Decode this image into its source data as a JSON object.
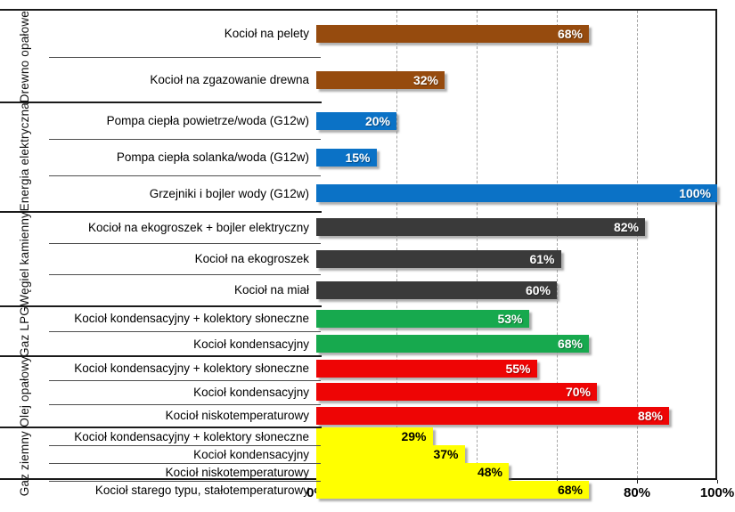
{
  "chart_data": {
    "type": "bar",
    "orientation": "horizontal",
    "title": "",
    "xlabel": "",
    "ylabel": "",
    "value_unit": "%",
    "xlim": [
      0,
      100
    ],
    "x_ticks": [
      "0%",
      "20%",
      "40%",
      "60%",
      "80%",
      "100%"
    ],
    "x_tick_values": [
      0,
      20,
      40,
      60,
      80,
      100
    ],
    "grid": "vertical dashed gridlines at 20/40/60/80",
    "legend": "none",
    "colors": {
      "grid_line": "#a6a6a6",
      "border": "#1a1a1a",
      "row_separator": "#4d4d4d",
      "default_value_label": "#ffffff"
    },
    "groups": [
      {
        "label": "Drewno opałowe",
        "color": "#964b0e",
        "value_label_color": "#ffffff",
        "items": [
          {
            "label": "Kocioł na pelety",
            "value": 68,
            "value_label": "68%"
          },
          {
            "label": "Kocioł na zgazowanie drewna",
            "value": 32,
            "value_label": "32%"
          }
        ]
      },
      {
        "label": "Energia elektryczna",
        "color": "#0b72c6",
        "value_label_color": "#ffffff",
        "items": [
          {
            "label": "Pompa ciepła powietrze/woda (G12w)",
            "value": 20,
            "value_label": "20%"
          },
          {
            "label": "Pompa ciepła solanka/woda (G12w)",
            "value": 15,
            "value_label": "15%"
          },
          {
            "label": "Grzejniki i bojler wody (G12w)",
            "value": 100,
            "value_label": "100%"
          }
        ]
      },
      {
        "label": "Węgiel kamienny",
        "color": "#3a3a3a",
        "value_label_color": "#ffffff",
        "items": [
          {
            "label": "Kocioł na ekogroszek + bojler elektryczny",
            "value": 82,
            "value_label": "82%"
          },
          {
            "label": "Kocioł na ekogroszek",
            "value": 61,
            "value_label": "61%"
          },
          {
            "label": "Kocioł na miał",
            "value": 60,
            "value_label": "60%"
          }
        ]
      },
      {
        "label": "Gaz LPG",
        "color": "#17a94e",
        "value_label_color": "#ffffff",
        "items": [
          {
            "label": "Kocioł kondensacyjny + kolektory słoneczne",
            "value": 53,
            "value_label": "53%"
          },
          {
            "label": "Kocioł kondensacyjny",
            "value": 68,
            "value_label": "68%"
          }
        ]
      },
      {
        "label": "Olej opałowy",
        "color": "#ee0505",
        "value_label_color": "#ffffff",
        "items": [
          {
            "label": "Kocioł kondensacyjny + kolektory słoneczne",
            "value": 55,
            "value_label": "55%"
          },
          {
            "label": "Kocioł kondensacyjny",
            "value": 70,
            "value_label": "70%"
          },
          {
            "label": "Kocioł niskotemperaturowy",
            "value": 88,
            "value_label": "88%"
          }
        ]
      },
      {
        "label": "Gaz ziemny",
        "color": "#ffff00",
        "value_label_color": "#000000",
        "items": [
          {
            "label": "Kocioł kondensacyjny + kolektory słoneczne",
            "value": 29,
            "value_label": "29%"
          },
          {
            "label": "Kocioł kondensacyjny",
            "value": 37,
            "value_label": "37%"
          },
          {
            "label": "Kocioł niskotemperaturowy",
            "value": 48,
            "value_label": "48%"
          },
          {
            "label": "Kocioł starego typu, stałotemperaturowy",
            "value": 68,
            "value_label": "68%"
          }
        ]
      }
    ]
  }
}
